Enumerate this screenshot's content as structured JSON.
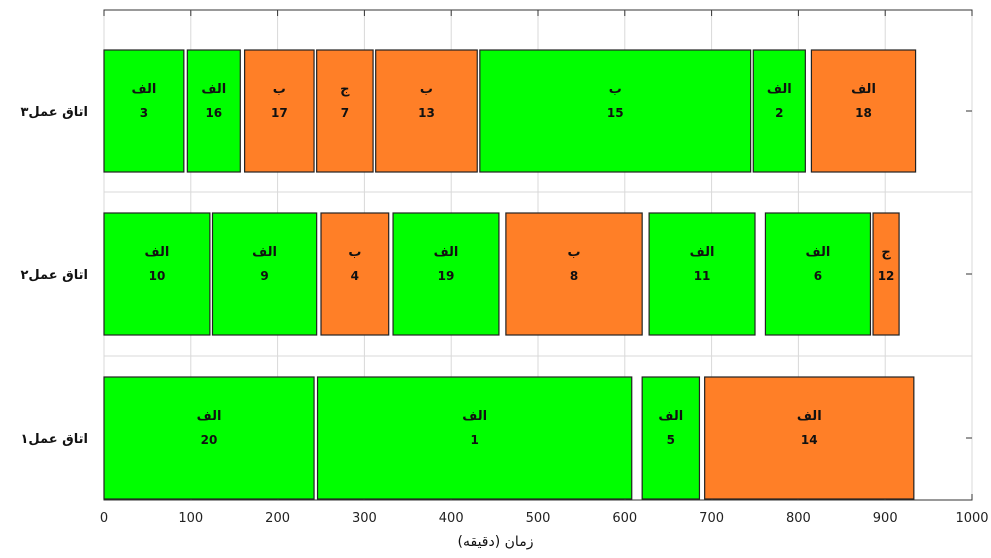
{
  "chart_data": {
    "type": "gantt",
    "title": "",
    "xlabel": "زمان (دقیقه)",
    "ylabel": "",
    "xlim": [
      0,
      1000
    ],
    "x_ticks": [
      0,
      100,
      200,
      300,
      400,
      500,
      600,
      700,
      800,
      900,
      1000
    ],
    "grid": true,
    "colors": {
      "green": "#00ff00",
      "orange": "#ff7f27",
      "border": "#222222",
      "grid": "#d9d9d9"
    },
    "rows": [
      {
        "label": "اتاق عمل۳",
        "tasks": [
          {
            "start": 0,
            "end": 92,
            "group": "الف",
            "id": "3",
            "color": "green"
          },
          {
            "start": 96,
            "end": 157,
            "group": "الف",
            "id": "16",
            "color": "green"
          },
          {
            "start": 162,
            "end": 242,
            "group": "ب",
            "id": "17",
            "color": "orange"
          },
          {
            "start": 245,
            "end": 310,
            "group": "ج",
            "id": "7",
            "color": "orange"
          },
          {
            "start": 313,
            "end": 430,
            "group": "ب",
            "id": "13",
            "color": "orange"
          },
          {
            "start": 433,
            "end": 745,
            "group": "ب",
            "id": "15",
            "color": "green"
          },
          {
            "start": 748,
            "end": 808,
            "group": "الف",
            "id": "2",
            "color": "green"
          },
          {
            "start": 815,
            "end": 935,
            "group": "الف",
            "id": "18",
            "color": "orange"
          }
        ]
      },
      {
        "label": "اتاق عمل۲",
        "tasks": [
          {
            "start": 0,
            "end": 122,
            "group": "الف",
            "id": "10",
            "color": "green"
          },
          {
            "start": 125,
            "end": 245,
            "group": "الف",
            "id": "9",
            "color": "green"
          },
          {
            "start": 250,
            "end": 328,
            "group": "ب",
            "id": "4",
            "color": "orange"
          },
          {
            "start": 333,
            "end": 455,
            "group": "الف",
            "id": "19",
            "color": "green"
          },
          {
            "start": 463,
            "end": 620,
            "group": "ب",
            "id": "8",
            "color": "orange"
          },
          {
            "start": 628,
            "end": 750,
            "group": "الف",
            "id": "11",
            "color": "green"
          },
          {
            "start": 762,
            "end": 883,
            "group": "الف",
            "id": "6",
            "color": "green"
          },
          {
            "start": 886,
            "end": 916,
            "group": "ج",
            "id": "12",
            "color": "orange"
          }
        ]
      },
      {
        "label": "اتاق عمل۱",
        "tasks": [
          {
            "start": 0,
            "end": 242,
            "group": "الف",
            "id": "20",
            "color": "green"
          },
          {
            "start": 246,
            "end": 608,
            "group": "الف",
            "id": "1",
            "color": "green"
          },
          {
            "start": 620,
            "end": 686,
            "group": "الف",
            "id": "5",
            "color": "green"
          },
          {
            "start": 692,
            "end": 933,
            "group": "الف",
            "id": "14",
            "color": "orange"
          }
        ]
      }
    ]
  }
}
